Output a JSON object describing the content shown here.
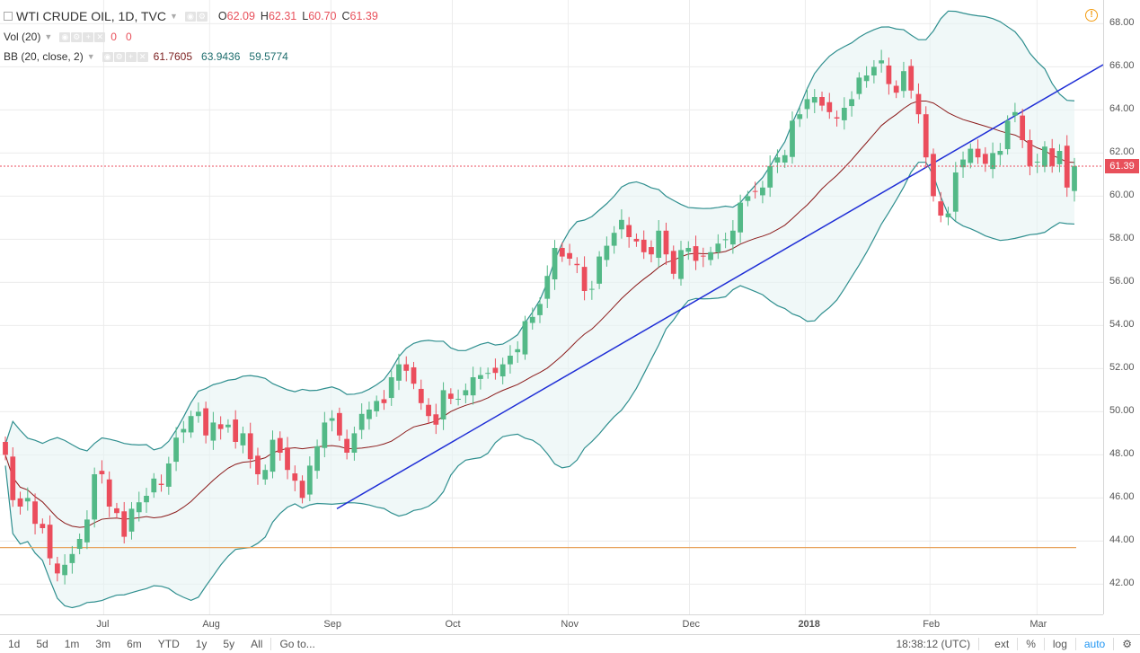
{
  "header": {
    "symbol": "WTI CRUDE OIL, 1D, TVC",
    "open_label": "O",
    "open": "62.09",
    "high_label": "H",
    "high": "62.31",
    "low_label": "L",
    "low": "60.70",
    "close_label": "C",
    "close": "61.39"
  },
  "indicators": {
    "vol_name": "Vol (20)",
    "vol_val1": "0",
    "vol_val2": "0",
    "bb_name": "BB (20, close, 2)",
    "bb_mid": "61.7605",
    "bb_upper": "63.9436",
    "bb_lower": "59.5774"
  },
  "price_axis": [
    "68.00",
    "66.00",
    "64.00",
    "62.00",
    "60.00",
    "58.00",
    "56.00",
    "54.00",
    "52.00",
    "50.00",
    "48.00",
    "46.00",
    "44.00",
    "42.00"
  ],
  "last_price": "61.39",
  "time_axis": [
    "Jul",
    "Aug",
    "Sep",
    "Oct",
    "Nov",
    "Dec",
    "2018",
    "Feb",
    "Mar"
  ],
  "bottom_bar": {
    "ranges": [
      "1d",
      "5d",
      "1m",
      "3m",
      "6m",
      "YTD",
      "1y",
      "5y",
      "All"
    ],
    "goto": "Go to...",
    "clock": "18:38:12 (UTC)",
    "ext": "ext",
    "pct": "%",
    "log": "log",
    "auto": "auto"
  },
  "colors": {
    "up": "#53b987",
    "down": "#eb4d5c",
    "band_fill": "#e6f3f3",
    "band_line": "#2f8f8f",
    "basis": "#8b1a1a",
    "trend": "#1f2ed6",
    "support": "#e8a45f"
  },
  "chart_data": {
    "type": "candlestick",
    "title": "WTI CRUDE OIL, 1D, TVC",
    "ylim": [
      40.6,
      69.1
    ],
    "support_level": 43.7,
    "trendline": [
      [
        0.0,
        45.5
      ],
      [
        1.0,
        66.1
      ]
    ],
    "closes": [
      48.0,
      45.9,
      45.6,
      46.0,
      44.8,
      44.6,
      43.2,
      42.5,
      42.9,
      43.4,
      44.1,
      45.0,
      47.1,
      47.1,
      45.6,
      45.3,
      44.2,
      45.5,
      45.8,
      46.1,
      46.9,
      46.6,
      47.6,
      48.8,
      49.2,
      49.8,
      50.0,
      48.9,
      49.5,
      49.2,
      49.4,
      48.6,
      49.0,
      47.8,
      47.1,
      47.3,
      48.7,
      48.1,
      47.3,
      46.8,
      46.0,
      47.5,
      48.4,
      49.5,
      49.7,
      48.9,
      48.1,
      49.0,
      49.9,
      50.1,
      50.5,
      50.4,
      51.6,
      52.2,
      51.9,
      51.3,
      50.4,
      49.8,
      49.4,
      51.0,
      50.6,
      50.6,
      51.0,
      51.6,
      51.7,
      51.8,
      51.8,
      52.2,
      52.6,
      52.9,
      54.2,
      54.4,
      55.0,
      56.3,
      57.6,
      57.2,
      57.1,
      56.8,
      55.6,
      55.7,
      57.2,
      57.7,
      58.3,
      58.9,
      58.1,
      57.9,
      57.4,
      57.3,
      58.4,
      57.3,
      56.4,
      57.5,
      57.6,
      57.0,
      57.2,
      57.4,
      57.8,
      58.0,
      58.4,
      59.7,
      60.0,
      60.2,
      60.4,
      61.4,
      61.8,
      61.9,
      63.5,
      63.8,
      64.5,
      64.6,
      64.2,
      63.9,
      63.6,
      64.1,
      64.5,
      65.5,
      65.6,
      66.0,
      66.3,
      65.2,
      64.8,
      65.8,
      64.9,
      63.8,
      61.8,
      60.0,
      59.1,
      59.2,
      61.1,
      61.7,
      62.2,
      61.8,
      61.5,
      62.0,
      62.1,
      63.5,
      63.9,
      62.6,
      61.4,
      61.6,
      62.3,
      61.4,
      62.1,
      60.4,
      61.4
    ]
  }
}
